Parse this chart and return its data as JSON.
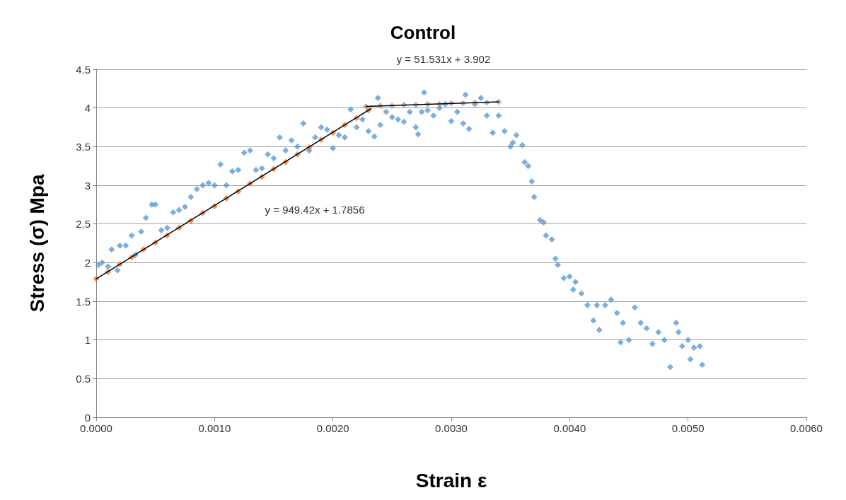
{
  "chart_data": {
    "type": "scatter",
    "title": "Control",
    "xlabel": "Strain ε",
    "ylabel": "Stress (σ) Mpa",
    "xlim": [
      0,
      0.006
    ],
    "xticks": [
      {
        "value": 0,
        "label": "0.0000"
      },
      {
        "value": 0.001,
        "label": "0.0010"
      },
      {
        "value": 0.002,
        "label": "0.0020"
      },
      {
        "value": 0.003,
        "label": "0.0030"
      },
      {
        "value": 0.004,
        "label": "0.0040"
      },
      {
        "value": 0.005,
        "label": "0.0050"
      },
      {
        "value": 0.006,
        "label": "0.0060"
      }
    ],
    "ylim": [
      0,
      4.5
    ],
    "yticks": [
      0,
      0.5,
      1,
      1.5,
      2,
      2.5,
      3,
      3.5,
      4,
      4.5
    ],
    "grid": "y",
    "marker": "diamond",
    "annotations": [
      "y = 51.531x + 3.902",
      "y = 949.42x + 1.7856"
    ],
    "series": [
      {
        "color": "#5b9bd5",
        "x": [
          2e-05,
          5e-05,
          0.0001,
          0.00013,
          0.00018,
          0.0002,
          0.00025,
          0.0003,
          0.00033,
          0.00038,
          0.00042,
          0.00047,
          0.0005,
          0.00055,
          0.0006,
          0.00065,
          0.0007,
          0.00075,
          0.0008,
          0.00085,
          0.0009,
          0.00095,
          0.001,
          0.00105,
          0.0011,
          0.00115,
          0.0012,
          0.00125,
          0.0013,
          0.00135,
          0.0014,
          0.00145,
          0.0015,
          0.00155,
          0.0016,
          0.00165,
          0.0017,
          0.00175,
          0.0018,
          0.00185,
          0.0019,
          0.00195,
          0.002,
          0.00205,
          0.0021,
          0.00215,
          0.0022,
          0.00225,
          0.0023,
          0.00235,
          0.00238,
          0.0024,
          0.00245,
          0.0025,
          0.00255,
          0.0026,
          0.00265,
          0.0027,
          0.00272,
          0.00275,
          0.00277,
          0.0028,
          0.00285,
          0.0029,
          0.00295,
          0.003,
          0.00305,
          0.0031,
          0.00312,
          0.00315,
          0.0032,
          0.00325,
          0.0033,
          0.00335,
          0.0034,
          0.00345,
          0.0035,
          0.00352,
          0.00355,
          0.0036,
          0.00362,
          0.00365,
          0.00368,
          0.0037,
          0.00375,
          0.00378,
          0.0038,
          0.00385,
          0.00388,
          0.0039,
          0.00395,
          0.004,
          0.00403,
          0.00405,
          0.0041,
          0.00415,
          0.0042,
          0.00423,
          0.00425,
          0.0043,
          0.00435,
          0.0044,
          0.00443,
          0.00445,
          0.0045,
          0.00455,
          0.0046,
          0.00465,
          0.0047,
          0.00475,
          0.0048,
          0.00485,
          0.0049,
          0.00492,
          0.00495,
          0.005,
          0.00502,
          0.00505,
          0.0051,
          0.00512
        ],
        "values": [
          1.97,
          2.0,
          1.95,
          2.17,
          1.9,
          2.22,
          2.22,
          2.35,
          2.1,
          2.4,
          2.58,
          2.75,
          2.75,
          2.42,
          2.45,
          2.65,
          2.68,
          2.72,
          2.85,
          2.95,
          3.0,
          3.03,
          3.0,
          3.27,
          3.0,
          3.18,
          3.2,
          3.42,
          3.45,
          3.2,
          3.22,
          3.4,
          3.35,
          3.62,
          3.45,
          3.58,
          3.5,
          3.8,
          3.45,
          3.62,
          3.75,
          3.72,
          3.48,
          3.65,
          3.62,
          3.98,
          3.75,
          3.85,
          3.7,
          3.63,
          4.13,
          3.78,
          3.95,
          3.88,
          3.85,
          3.82,
          3.95,
          3.75,
          3.66,
          3.95,
          4.2,
          3.97,
          3.9,
          4.0,
          4.05,
          3.83,
          3.95,
          3.8,
          4.17,
          3.73,
          4.05,
          4.13,
          3.9,
          3.68,
          3.9,
          3.7,
          3.5,
          3.55,
          3.65,
          3.52,
          3.3,
          3.25,
          3.05,
          2.85,
          2.55,
          2.52,
          2.35,
          2.3,
          2.05,
          1.97,
          1.8,
          1.82,
          1.65,
          1.75,
          1.6,
          1.45,
          1.25,
          1.45,
          1.13,
          1.45,
          1.52,
          1.35,
          0.97,
          1.22,
          1.0,
          1.42,
          1.22,
          1.15,
          0.95,
          1.1,
          1.0,
          0.65,
          1.22,
          1.1,
          0.92,
          1.0,
          0.75,
          0.9,
          0.92,
          0.68
        ]
      },
      {
        "color": "#ed7d31",
        "x": [
          0,
          0.0001,
          0.0002,
          0.0003,
          0.0004,
          0.0005,
          0.0006,
          0.0007,
          0.0008,
          0.0009,
          0.001,
          0.0011,
          0.0012,
          0.0013,
          0.0014,
          0.0015,
          0.0016,
          0.0017,
          0.0018,
          0.0019,
          0.002,
          0.0021,
          0.0022,
          0.0023
        ],
        "values": [
          1.79,
          1.88,
          1.98,
          2.07,
          2.17,
          2.26,
          2.35,
          2.45,
          2.54,
          2.64,
          2.73,
          2.83,
          2.92,
          3.02,
          3.11,
          3.21,
          3.3,
          3.4,
          3.49,
          3.59,
          3.68,
          3.78,
          3.87,
          3.97
        ]
      },
      {
        "color": "#a5a5a5",
        "x": [
          0.00228,
          0.0024,
          0.0025,
          0.0026,
          0.0027,
          0.0028,
          0.0029,
          0.003,
          0.0031,
          0.0032,
          0.0033,
          0.0034
        ],
        "values": [
          4.02,
          4.03,
          4.03,
          4.04,
          4.04,
          4.05,
          4.05,
          4.06,
          4.06,
          4.07,
          4.07,
          4.08
        ]
      },
      {
        "type": "line",
        "color": "#000000",
        "marker": "none",
        "x": [
          0,
          0.00232
        ],
        "values": [
          1.79,
          3.99
        ]
      },
      {
        "type": "line",
        "color": "#000000",
        "marker": "none",
        "x": [
          0.00228,
          0.0034
        ],
        "values": [
          4.02,
          4.08
        ]
      }
    ]
  }
}
